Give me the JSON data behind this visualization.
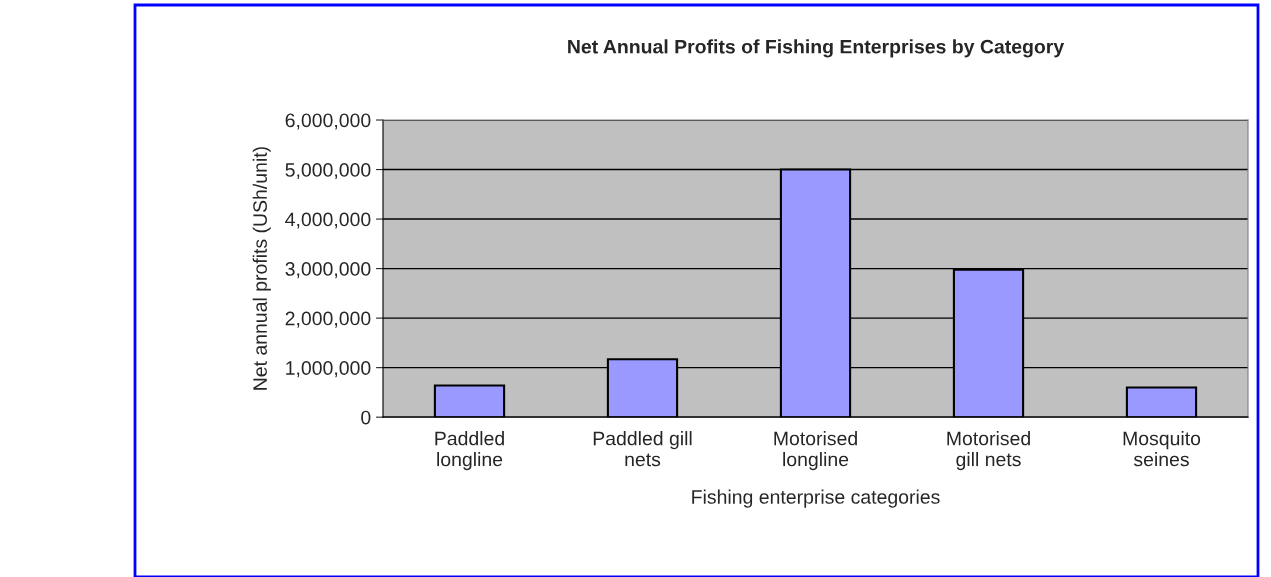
{
  "chart_data": {
    "type": "bar",
    "title": "Net Annual Profits of Fishing Enterprises by Category",
    "xlabel": "Fishing enterprise categories",
    "ylabel": "Net annual profits (USh/unit)",
    "categories": [
      "Paddled\nlongline",
      "Paddled gill\nnets",
      "Motorised\nlongline",
      "Motorised\ngill nets",
      "Mosquito\nseines"
    ],
    "values": [
      640000,
      1170000,
      5000000,
      2980000,
      600000
    ],
    "color": "#9999ff",
    "ylim": [
      0,
      6000000
    ],
    "yticks": [
      {
        "value": 0,
        "label": "0"
      },
      {
        "value": 1000000,
        "label": "1,000,000"
      },
      {
        "value": 2000000,
        "label": "2,000,000"
      },
      {
        "value": 3000000,
        "label": "3,000,000"
      },
      {
        "value": 4000000,
        "label": "4,000,000"
      },
      {
        "value": 5000000,
        "label": "5,000,000"
      },
      {
        "value": 6000000,
        "label": "6,000,000"
      }
    ],
    "grid": "y",
    "legend": false
  }
}
